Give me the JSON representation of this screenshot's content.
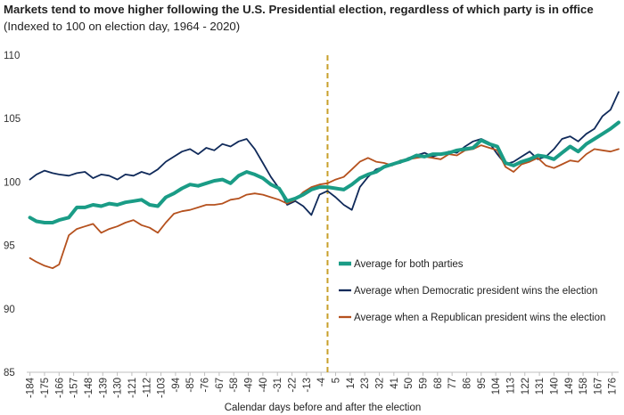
{
  "title": "Markets tend to move higher following the U.S. Presidential election, regardless of which party is in office",
  "subtitle": "(Indexed to 100 on election day, 1964 - 2020)",
  "chart_data": {
    "type": "line",
    "xlabel": "Calendar days before and after the election",
    "ylabel": "",
    "ylim": [
      85,
      110
    ],
    "xlim": [
      -186,
      180
    ],
    "y_ticks": [
      85,
      90,
      95,
      100,
      105,
      110
    ],
    "x_ticks": [
      -184,
      -175,
      -166,
      -157,
      -148,
      -139,
      -130,
      -121,
      -112,
      -103,
      -94,
      -85,
      -76,
      -67,
      -58,
      -49,
      -40,
      -31,
      -22,
      -13,
      -4,
      5,
      14,
      23,
      32,
      41,
      50,
      59,
      68,
      77,
      86,
      95,
      104,
      113,
      122,
      131,
      140,
      149,
      158,
      167,
      176
    ],
    "x_tick_labels": [
      "-184",
      "-175",
      "-166",
      "-157",
      "-148",
      "-139",
      "-130",
      "-121",
      "-112",
      "-103",
      "-94",
      "-85",
      "-76",
      "-67",
      "-58",
      "-49",
      "-40",
      "-31",
      "-22",
      "-13",
      "-4",
      "5",
      "14",
      "23",
      "32",
      "41",
      "50",
      "59",
      "68",
      "77",
      "86",
      "95",
      "104",
      "113",
      "122",
      "131",
      "140",
      "149",
      "158",
      "167",
      "176"
    ],
    "grid": false,
    "legend_placement": "lower-right",
    "annotations": [
      {
        "type": "vertical-dashed-line",
        "x": 0,
        "color": "#c8a02a"
      }
    ],
    "series": [
      {
        "name": "Average for both parties",
        "color": "#1a9c86",
        "width": 4,
        "x": [
          -184,
          -180,
          -175,
          -170,
          -166,
          -160,
          -155,
          -150,
          -145,
          -140,
          -135,
          -130,
          -125,
          -120,
          -115,
          -110,
          -105,
          -100,
          -95,
          -90,
          -85,
          -80,
          -75,
          -70,
          -65,
          -60,
          -55,
          -50,
          -45,
          -40,
          -35,
          -30,
          -25,
          -20,
          -15,
          -10,
          -5,
          0,
          5,
          10,
          15,
          20,
          25,
          30,
          35,
          40,
          45,
          50,
          55,
          60,
          65,
          70,
          75,
          80,
          85,
          90,
          95,
          100,
          105,
          110,
          115,
          120,
          125,
          130,
          135,
          140,
          145,
          150,
          155,
          160,
          165,
          170,
          175,
          180
        ],
        "values": [
          97.2,
          96.9,
          96.8,
          96.8,
          97.0,
          97.2,
          98.0,
          98.0,
          98.2,
          98.1,
          98.3,
          98.2,
          98.4,
          98.5,
          98.6,
          98.2,
          98.1,
          98.8,
          99.1,
          99.5,
          99.8,
          99.7,
          99.9,
          100.1,
          100.2,
          99.9,
          100.5,
          100.8,
          100.6,
          100.3,
          99.8,
          99.5,
          98.5,
          98.7,
          99.0,
          99.4,
          99.6,
          99.6,
          99.5,
          99.4,
          99.8,
          100.3,
          100.6,
          100.8,
          101.2,
          101.4,
          101.6,
          101.8,
          102.1,
          102.0,
          102.2,
          102.2,
          102.3,
          102.5,
          102.6,
          102.7,
          103.3,
          103.0,
          102.8,
          101.5,
          101.3,
          101.6,
          101.8,
          102.1,
          102.0,
          101.8,
          102.3,
          102.8,
          102.4,
          103.0,
          103.4,
          103.8,
          104.2,
          104.7
        ]
      },
      {
        "name": "Average when Democratic president wins the election",
        "color": "#102a5a",
        "width": 1.8,
        "x": [
          -184,
          -180,
          -175,
          -170,
          -166,
          -160,
          -155,
          -150,
          -145,
          -140,
          -135,
          -130,
          -125,
          -120,
          -115,
          -110,
          -105,
          -100,
          -95,
          -90,
          -85,
          -80,
          -75,
          -70,
          -65,
          -60,
          -55,
          -50,
          -45,
          -40,
          -35,
          -30,
          -25,
          -20,
          -15,
          -10,
          -5,
          0,
          5,
          10,
          15,
          20,
          25,
          30,
          35,
          40,
          45,
          50,
          55,
          60,
          65,
          70,
          75,
          80,
          85,
          90,
          95,
          100,
          105,
          110,
          115,
          120,
          125,
          130,
          135,
          140,
          145,
          150,
          155,
          160,
          165,
          170,
          175,
          180
        ],
        "values": [
          100.2,
          100.6,
          100.9,
          100.7,
          100.6,
          100.5,
          100.7,
          100.8,
          100.3,
          100.6,
          100.5,
          100.2,
          100.6,
          100.5,
          100.8,
          100.6,
          101.0,
          101.6,
          102.0,
          102.4,
          102.6,
          102.2,
          102.7,
          102.5,
          103.0,
          102.8,
          103.2,
          103.4,
          102.6,
          101.5,
          100.4,
          99.5,
          98.2,
          98.5,
          98.1,
          97.4,
          99.0,
          99.3,
          98.8,
          98.2,
          97.8,
          99.6,
          100.4,
          101.0,
          101.2,
          101.4,
          101.5,
          101.9,
          102.1,
          102.3,
          102.0,
          102.2,
          102.4,
          102.3,
          102.8,
          103.2,
          103.4,
          103.1,
          102.2,
          101.4,
          101.6,
          102.0,
          102.4,
          101.8,
          102.0,
          102.6,
          103.4,
          103.6,
          103.2,
          103.8,
          104.2,
          105.2,
          105.7,
          107.1
        ]
      },
      {
        "name": "Average when a Republican president wins the election",
        "color": "#b5511e",
        "width": 1.8,
        "x": [
          -184,
          -180,
          -175,
          -170,
          -166,
          -160,
          -155,
          -150,
          -145,
          -140,
          -135,
          -130,
          -125,
          -120,
          -115,
          -110,
          -105,
          -100,
          -95,
          -90,
          -85,
          -80,
          -75,
          -70,
          -65,
          -60,
          -55,
          -50,
          -45,
          -40,
          -35,
          -30,
          -25,
          -20,
          -15,
          -10,
          -5,
          0,
          5,
          10,
          15,
          20,
          25,
          30,
          35,
          40,
          45,
          50,
          55,
          60,
          65,
          70,
          75,
          80,
          85,
          90,
          95,
          100,
          105,
          110,
          115,
          120,
          125,
          130,
          135,
          140,
          145,
          150,
          155,
          160,
          165,
          170,
          175,
          180
        ],
        "values": [
          94.0,
          93.7,
          93.4,
          93.2,
          93.5,
          95.8,
          96.3,
          96.5,
          96.7,
          96.0,
          96.3,
          96.5,
          96.8,
          97.0,
          96.6,
          96.4,
          96.0,
          96.8,
          97.5,
          97.7,
          97.8,
          98.0,
          98.2,
          98.2,
          98.3,
          98.6,
          98.7,
          99.0,
          99.1,
          99.0,
          98.8,
          98.6,
          98.3,
          98.6,
          99.2,
          99.6,
          99.8,
          99.9,
          100.2,
          100.4,
          101.0,
          101.6,
          101.9,
          101.6,
          101.5,
          101.3,
          101.7,
          101.8,
          101.9,
          102.0,
          101.9,
          101.8,
          102.2,
          102.1,
          102.5,
          102.6,
          102.9,
          102.7,
          102.5,
          101.2,
          100.8,
          101.4,
          101.6,
          101.9,
          101.3,
          101.1,
          101.4,
          101.7,
          101.6,
          102.2,
          102.6,
          102.5,
          102.4,
          102.6
        ]
      }
    ]
  }
}
